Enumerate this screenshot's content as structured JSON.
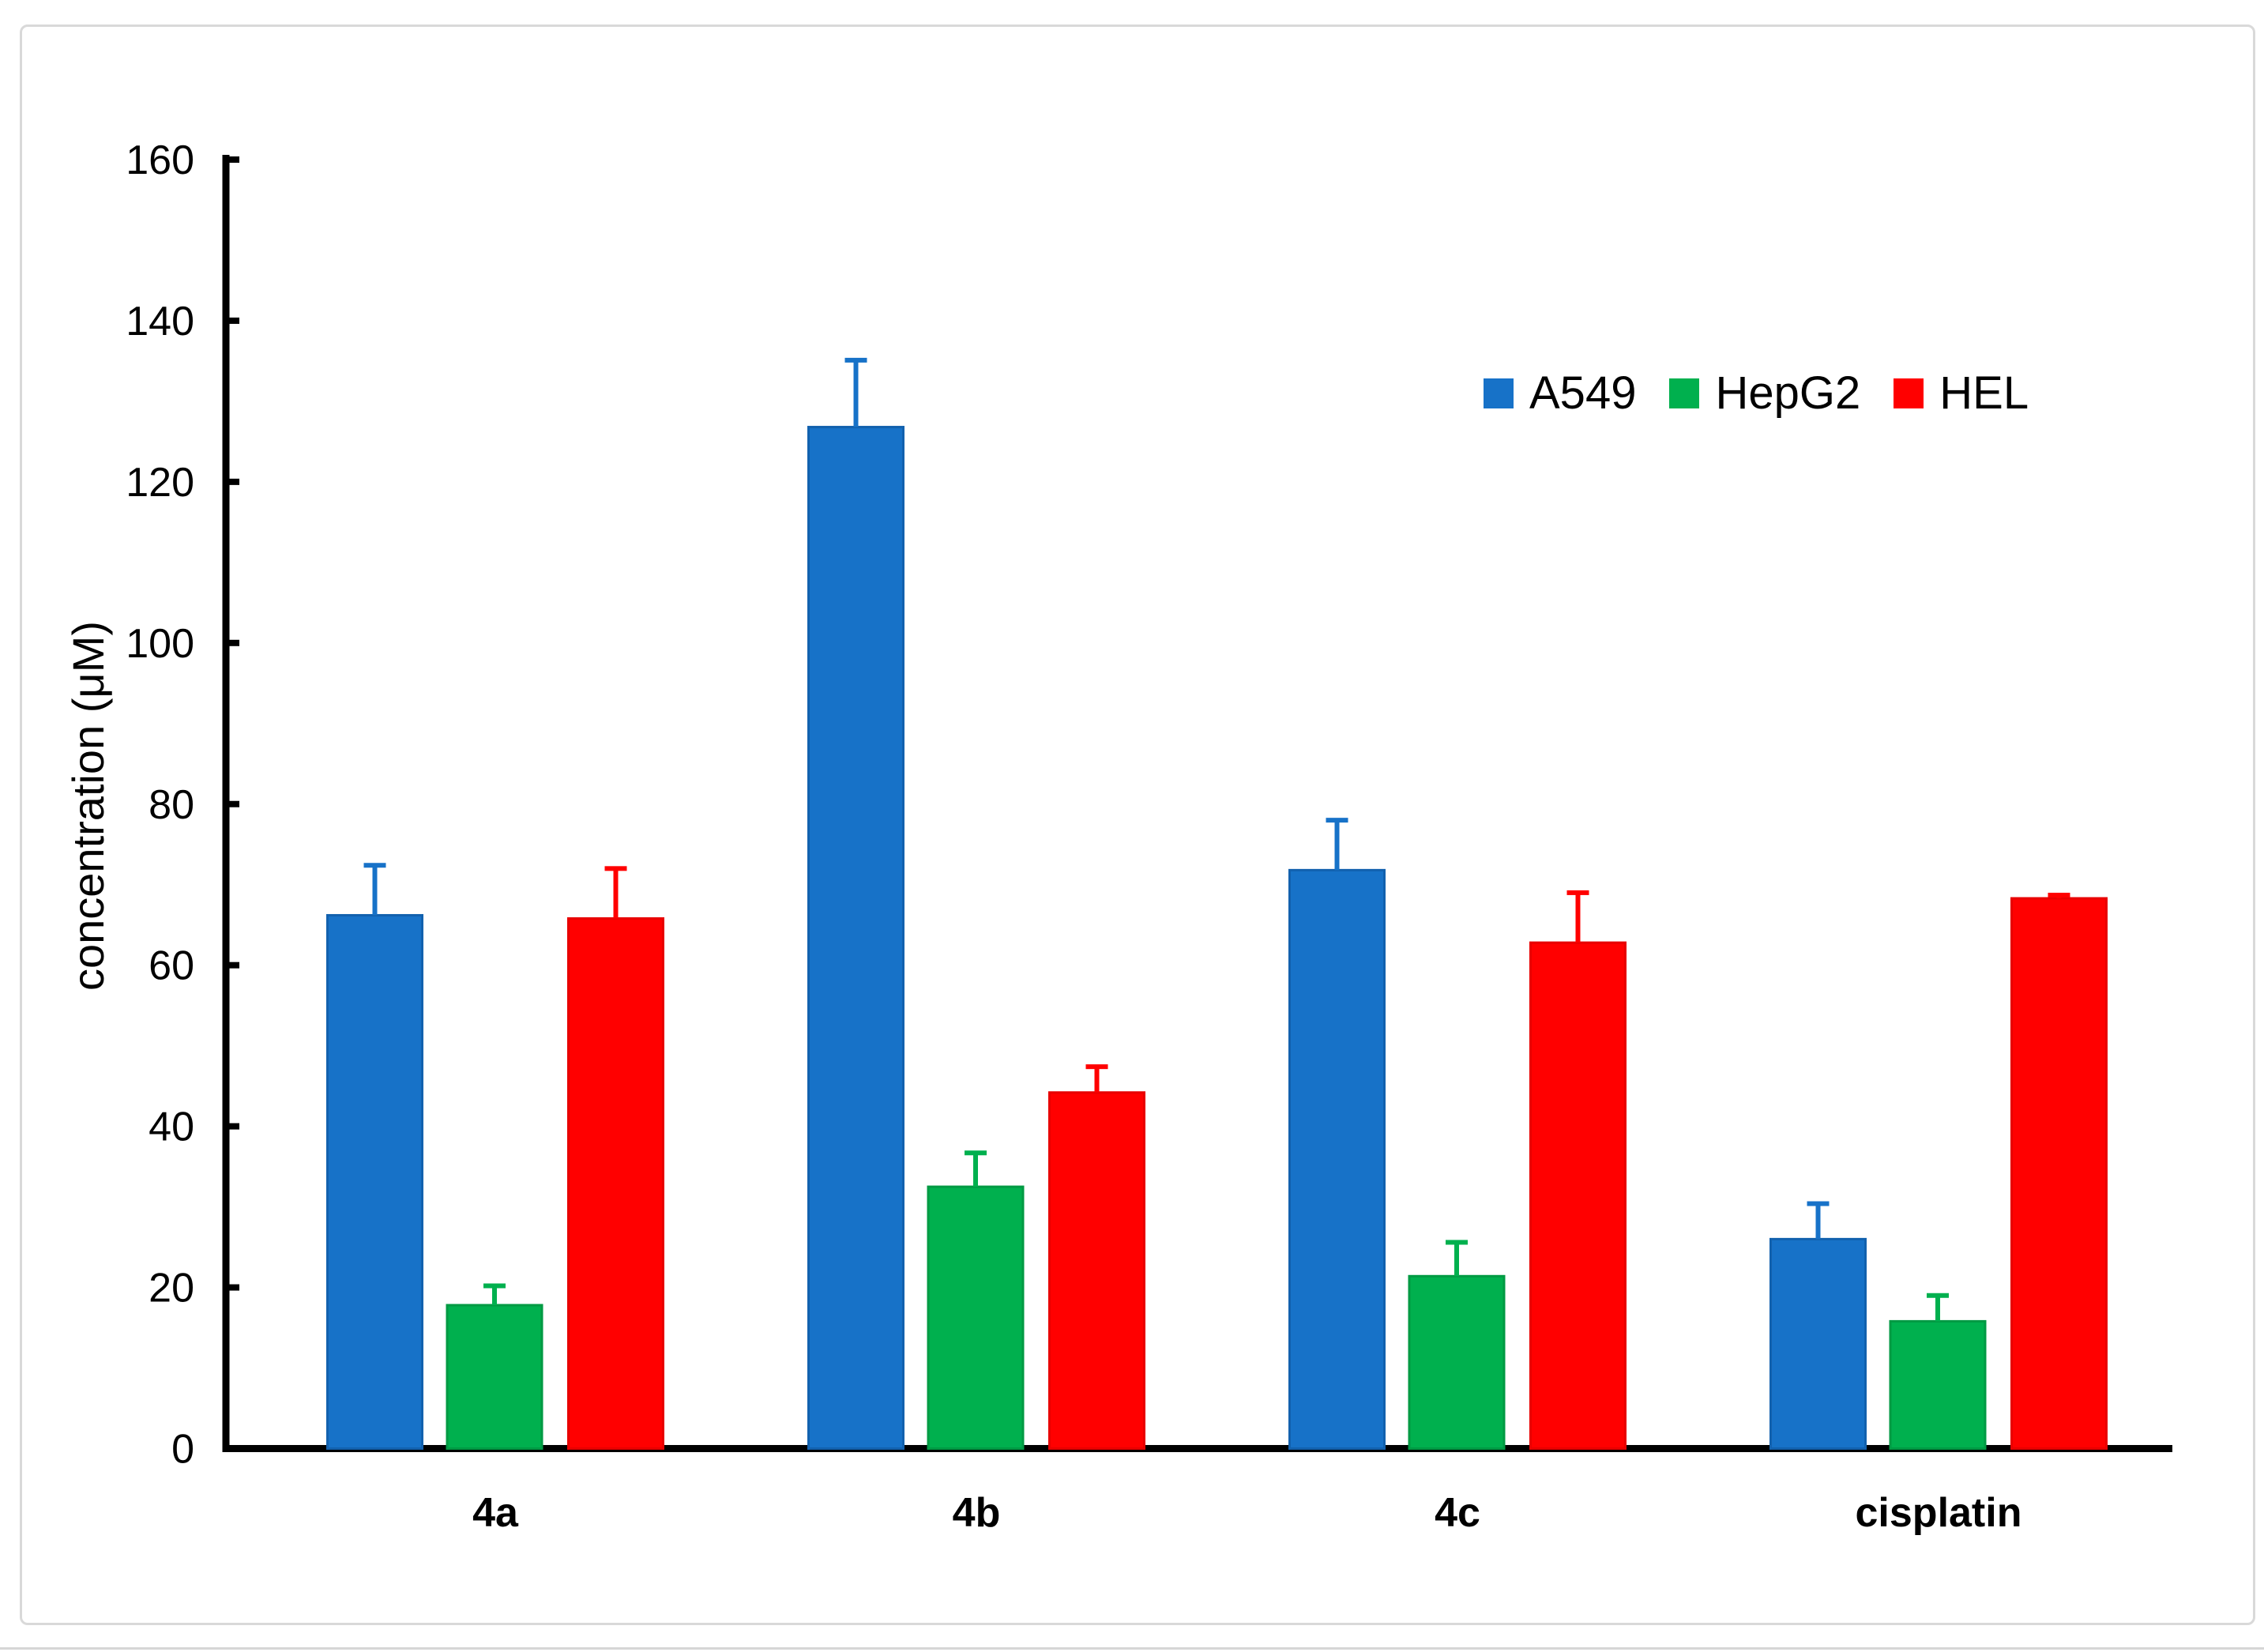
{
  "figure": {
    "background": "#ffffff",
    "border_color": "#d9d9d9"
  },
  "chart_data": {
    "type": "bar",
    "title": "",
    "categories": [
      "4a",
      "4b",
      "4c",
      "cisplatin"
    ],
    "series": [
      {
        "name": "A549",
        "color": "#1772c8",
        "edge_color": "#1261ae",
        "values": [
          66.2,
          126.8,
          71.8,
          26.0
        ],
        "errors": [
          6.2,
          8.3,
          6.2,
          4.4
        ]
      },
      {
        "name": "HepG2",
        "color": "#00b04e",
        "edge_color": "#009a43",
        "values": [
          17.8,
          32.5,
          21.4,
          15.8
        ],
        "errors": [
          2.4,
          4.2,
          4.2,
          3.2
        ]
      },
      {
        "name": "HEL",
        "color": "#ff0000",
        "edge_color": "#e80000",
        "values": [
          65.8,
          44.2,
          62.8,
          68.3
        ],
        "errors": [
          6.2,
          3.2,
          6.2,
          0.4
        ]
      }
    ],
    "xlabel": "",
    "ylabel": "concentration (μM)",
    "ylim": [
      0,
      160
    ],
    "ytick_step": 20,
    "yticks": [
      0,
      20,
      40,
      60,
      80,
      100,
      120,
      140,
      160
    ],
    "grid": false,
    "error_bars": true,
    "legend_position": "top-right-inside",
    "axis_color": "#000000"
  }
}
